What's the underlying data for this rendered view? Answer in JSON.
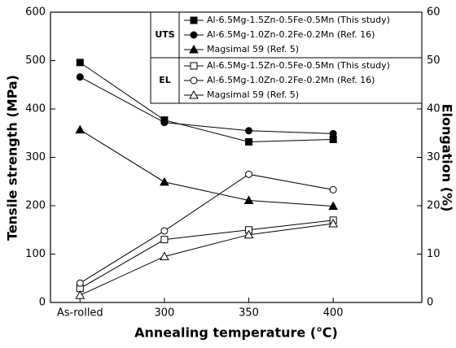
{
  "chart_data": {
    "type": "line",
    "x_label": "Annealing temperature (℃)",
    "y_label": "Tensile strength (MPa)",
    "y2_label": "Elongation (%)",
    "categories": [
      "As-rolled",
      "300",
      "350",
      "400"
    ],
    "ylim": [
      0,
      600
    ],
    "yticks": [
      0,
      100,
      200,
      300,
      400,
      500,
      600
    ],
    "y2lim": [
      0,
      60
    ],
    "y2ticks": [
      0,
      10,
      20,
      30,
      40,
      50,
      60
    ],
    "legend_groups": [
      "UTS",
      "EL"
    ],
    "legend": "upper right",
    "series": [
      {
        "name": "Al-6.5Mg-1.5Zn-0.5Fe-0.5Mn (This study)",
        "color": "#000000",
        "marker": "square",
        "filled": true,
        "values": [
          496,
          377,
          332,
          337
        ]
      },
      {
        "name": "Al-6.5Mg-1.0Zn-0.2Fe-0.2Mn (Ref. 16)",
        "color": "#000000",
        "marker": "circle",
        "filled": true,
        "values": [
          466,
          372,
          355,
          349
        ]
      },
      {
        "name": "Magsimal 59 (Ref. 5)",
        "color": "#000000",
        "marker": "triangle",
        "filled": true,
        "values": [
          357,
          249,
          211,
          199
        ]
      },
      {
        "name": "Al-6.5Mg-1.5Zn-0.5Fe-0.5Mn (This study)",
        "color": "#000000",
        "marker": "square",
        "filled": false,
        "axis": "y2",
        "values": [
          2.9,
          13,
          15,
          17
        ]
      },
      {
        "name": "Al-6.5Mg-1.0Zn-0.2Fe-0.2Mn (Ref. 16)",
        "color": "#000000",
        "marker": "circle",
        "filled": false,
        "axis": "y2",
        "values": [
          4,
          14.8,
          26.5,
          23.3
        ]
      },
      {
        "name": "Magsimal 59 (Ref. 5)",
        "color": "#000000",
        "marker": "triangle",
        "filled": false,
        "axis": "y2",
        "values": [
          1.5,
          9.5,
          14,
          16.3
        ]
      }
    ]
  }
}
